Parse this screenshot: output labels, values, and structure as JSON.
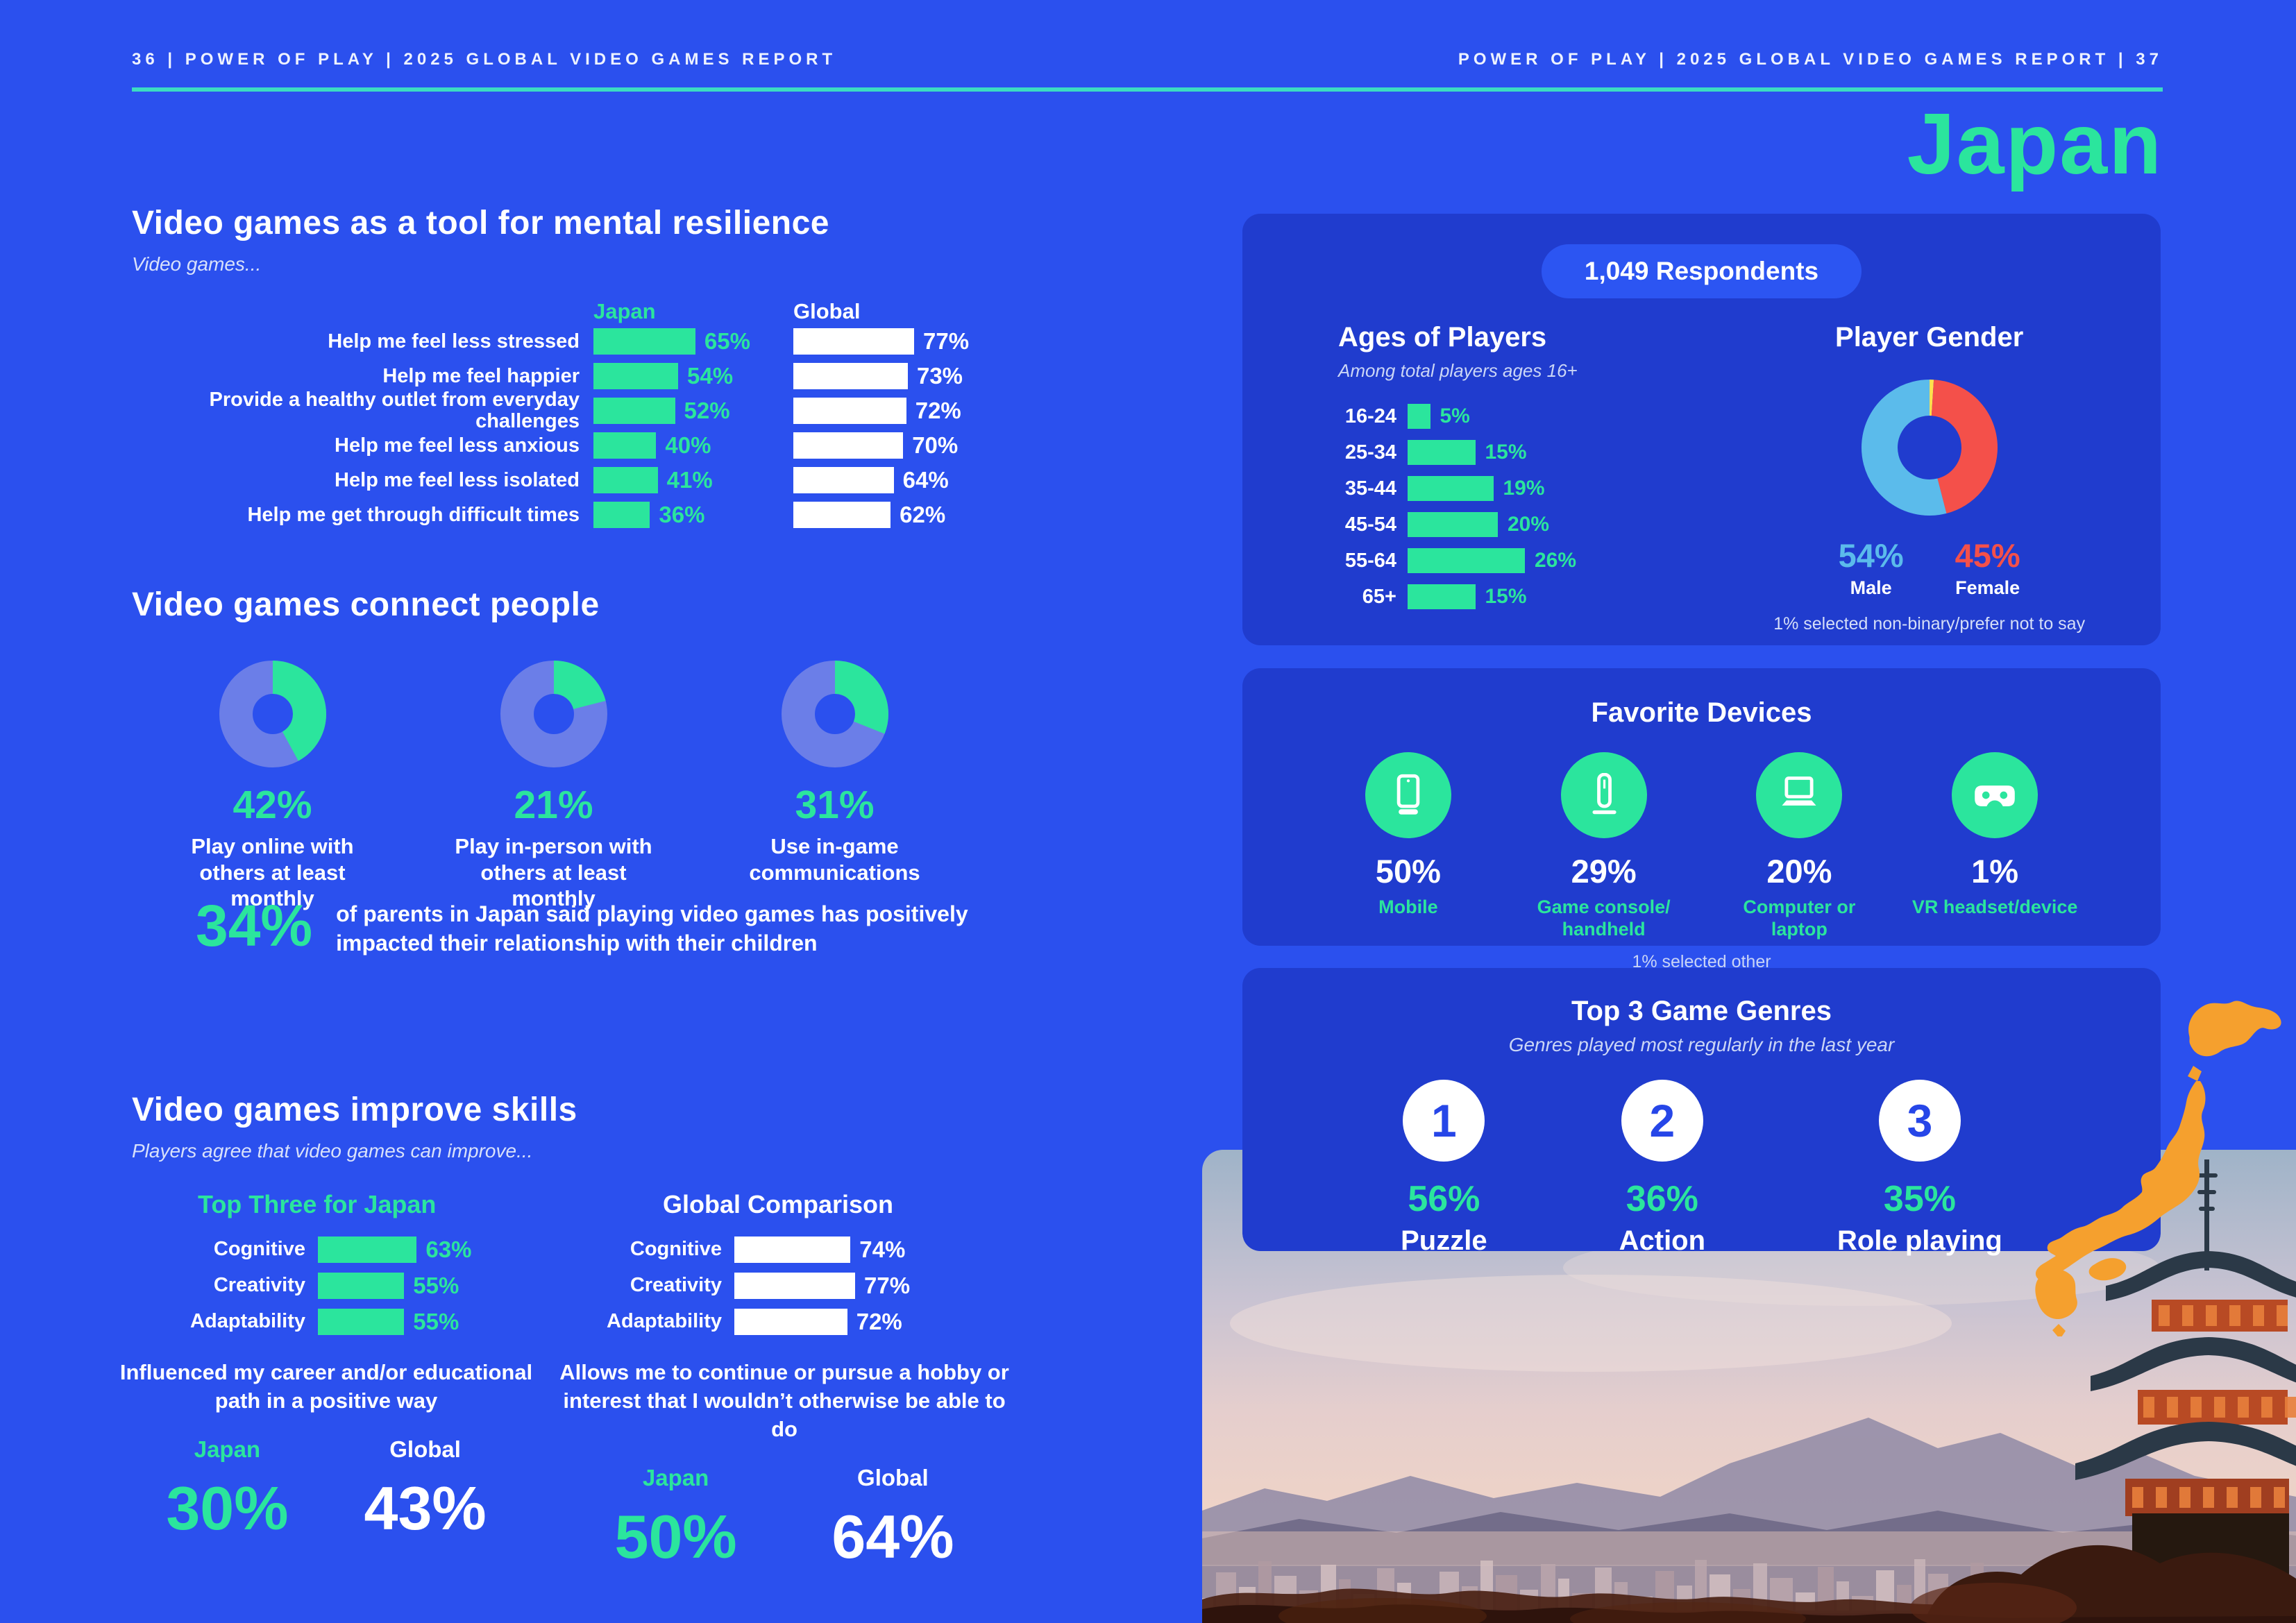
{
  "page_colors": {
    "background": "#2B50EE",
    "panel": "#203CCE",
    "accent_green": "#2BE59D",
    "underline_teal": "#3BDCC2",
    "donut_track": "#6B7EE8",
    "male_blue": "#5BBBEB",
    "female_red": "#F4504A",
    "nonbinary_yellow": "#FFE14D",
    "map_orange": "#F5A02E",
    "genre_number_blue": "#2646E8"
  },
  "header": {
    "left": "36   |   POWER OF PLAY   |   2025 GLOBAL VIDEO GAMES REPORT",
    "right": "POWER OF PLAY   |   2025 GLOBAL VIDEO GAMES REPORT   |   37"
  },
  "country_title": "Japan",
  "mental_resilience": {
    "title": "Video games as a tool for mental resilience",
    "subtitle": "Video games...",
    "col_japan": "Japan",
    "col_global": "Global",
    "rows": [
      {
        "label": "Help me feel less stressed",
        "japan": 65,
        "global": 77
      },
      {
        "label": "Help me feel happier",
        "japan": 54,
        "global": 73
      },
      {
        "label": "Provide a healthy outlet from everyday challenges",
        "japan": 52,
        "global": 72
      },
      {
        "label": "Help me feel less anxious",
        "japan": 40,
        "global": 70
      },
      {
        "label": "Help me feel less isolated",
        "japan": 41,
        "global": 64
      },
      {
        "label": "Help me get through difficult times",
        "japan": 36,
        "global": 62
      }
    ]
  },
  "connect": {
    "title": "Video games connect people",
    "donuts": [
      {
        "pct": 42,
        "label": "Play online with others at least monthly"
      },
      {
        "pct": 21,
        "label": "Play in-person with others at least monthly"
      },
      {
        "pct": 31,
        "label": "Use in-game communications"
      }
    ]
  },
  "parents_stat": {
    "value": "34%",
    "text": "of parents in Japan said playing video games has positively impacted their relationship with their children"
  },
  "skills": {
    "title": "Video games improve skills",
    "subtitle": "Players agree that video games can improve...",
    "japan_heading": "Top Three for Japan",
    "global_heading": "Global Comparison",
    "japan_rows": [
      {
        "label": "Cognitive",
        "value": 63
      },
      {
        "label": "Creativity",
        "value": 55
      },
      {
        "label": "Adaptability",
        "value": 55
      }
    ],
    "global_rows": [
      {
        "label": "Cognitive",
        "value": 74
      },
      {
        "label": "Creativity",
        "value": 77
      },
      {
        "label": "Adaptability",
        "value": 72
      }
    ]
  },
  "career_stat": {
    "heading": "Influenced my career and/or educational path in a positive way",
    "japan_label": "Japan",
    "global_label": "Global",
    "japan_value": "30%",
    "global_value": "43%"
  },
  "hobby_stat": {
    "heading": "Allows me to continue or pursue a hobby or interest that I wouldn’t otherwise be able to do",
    "japan_label": "Japan",
    "global_label": "Global",
    "japan_value": "50%",
    "global_value": "64%"
  },
  "respondents_panel": {
    "pill": "1,049 Respondents",
    "ages_title": "Ages of Players",
    "ages_subtitle": "Among total players ages 16+",
    "ages": [
      {
        "label": "16-24",
        "value": 5
      },
      {
        "label": "25-34",
        "value": 15
      },
      {
        "label": "35-44",
        "value": 19
      },
      {
        "label": "45-54",
        "value": 20
      },
      {
        "label": "55-64",
        "value": 26
      },
      {
        "label": "65+",
        "value": 15
      }
    ],
    "gender_title": "Player Gender",
    "male_pct": "54%",
    "male_label": "Male",
    "female_pct": "45%",
    "female_label": "Female",
    "gender_values": {
      "male": 54,
      "female": 45,
      "other": 1
    },
    "gender_note": "1% selected non-binary/prefer not to say"
  },
  "devices_panel": {
    "title": "Favorite Devices",
    "note": "1% selected other",
    "items": [
      {
        "icon": "mobile-icon",
        "pct": "50%",
        "label": "Mobile"
      },
      {
        "icon": "console-icon",
        "pct": "29%",
        "label": "Game console/ handheld"
      },
      {
        "icon": "laptop-icon",
        "pct": "20%",
        "label": "Computer or laptop"
      },
      {
        "icon": "vr-icon",
        "pct": "1%",
        "label": "VR headset/device"
      }
    ]
  },
  "genres_panel": {
    "title": "Top 3 Game Genres",
    "subtitle": "Genres played most regularly in the last year",
    "items": [
      {
        "rank": "1",
        "pct": "56%",
        "label": "Puzzle"
      },
      {
        "rank": "2",
        "pct": "36%",
        "label": "Action"
      },
      {
        "rank": "3",
        "pct": "35%",
        "label": "Role playing"
      }
    ]
  },
  "chart_data": [
    {
      "type": "bar",
      "title": "Video games as a tool for mental resilience",
      "categories": [
        "Help me feel less stressed",
        "Help me feel happier",
        "Provide a healthy outlet from everyday challenges",
        "Help me feel less anxious",
        "Help me feel less isolated",
        "Help me get through difficult times"
      ],
      "series": [
        {
          "name": "Japan",
          "values": [
            65,
            54,
            52,
            40,
            41,
            36
          ]
        },
        {
          "name": "Global",
          "values": [
            77,
            73,
            72,
            70,
            64,
            62
          ]
        }
      ],
      "unit": "%",
      "orientation": "horizontal",
      "xlim": [
        0,
        100
      ]
    },
    {
      "type": "pie",
      "title": "Video games connect people",
      "slices": [
        {
          "label": "Play online with others at least monthly",
          "value": 42
        },
        {
          "label": "Play in-person with others at least monthly",
          "value": 21
        },
        {
          "label": "Use in-game communications",
          "value": 31
        }
      ],
      "note": "three separate donuts, each value vs remainder"
    },
    {
      "type": "bar",
      "title": "Video games improve skills",
      "categories": [
        "Cognitive",
        "Creativity",
        "Adaptability"
      ],
      "series": [
        {
          "name": "Top Three for Japan",
          "values": [
            63,
            55,
            55
          ]
        },
        {
          "name": "Global Comparison",
          "values": [
            74,
            77,
            72
          ]
        }
      ],
      "unit": "%",
      "orientation": "horizontal",
      "xlim": [
        0,
        100
      ]
    },
    {
      "type": "bar",
      "title": "Ages of Players",
      "subtitle": "Among total players ages 16+",
      "categories": [
        "16-24",
        "25-34",
        "35-44",
        "45-54",
        "55-64",
        "65+"
      ],
      "values": [
        5,
        15,
        19,
        20,
        26,
        15
      ],
      "unit": "%",
      "orientation": "horizontal",
      "xlim": [
        0,
        30
      ]
    },
    {
      "type": "pie",
      "title": "Player Gender",
      "slices": [
        {
          "label": "Male",
          "value": 54
        },
        {
          "label": "Female",
          "value": 45
        },
        {
          "label": "Non-binary/prefer not to say",
          "value": 1
        }
      ]
    },
    {
      "type": "bar",
      "title": "Favorite Devices",
      "categories": [
        "Mobile",
        "Game console/handheld",
        "Computer or laptop",
        "VR headset/device"
      ],
      "values": [
        50,
        29,
        20,
        1
      ],
      "unit": "%",
      "note": "1% selected other"
    },
    {
      "type": "bar",
      "title": "Top 3 Game Genres",
      "subtitle": "Genres played most regularly in the last year",
      "categories": [
        "Puzzle",
        "Action",
        "Role playing"
      ],
      "values": [
        56,
        36,
        35
      ],
      "unit": "%"
    },
    {
      "type": "bar",
      "title": "Influenced my career and/or educational path in a positive way",
      "categories": [
        "Japan",
        "Global"
      ],
      "values": [
        30,
        43
      ],
      "unit": "%"
    },
    {
      "type": "bar",
      "title": "Allows me to continue or pursue a hobby or interest that I wouldn’t otherwise be able to do",
      "categories": [
        "Japan",
        "Global"
      ],
      "values": [
        50,
        64
      ],
      "unit": "%"
    }
  ]
}
